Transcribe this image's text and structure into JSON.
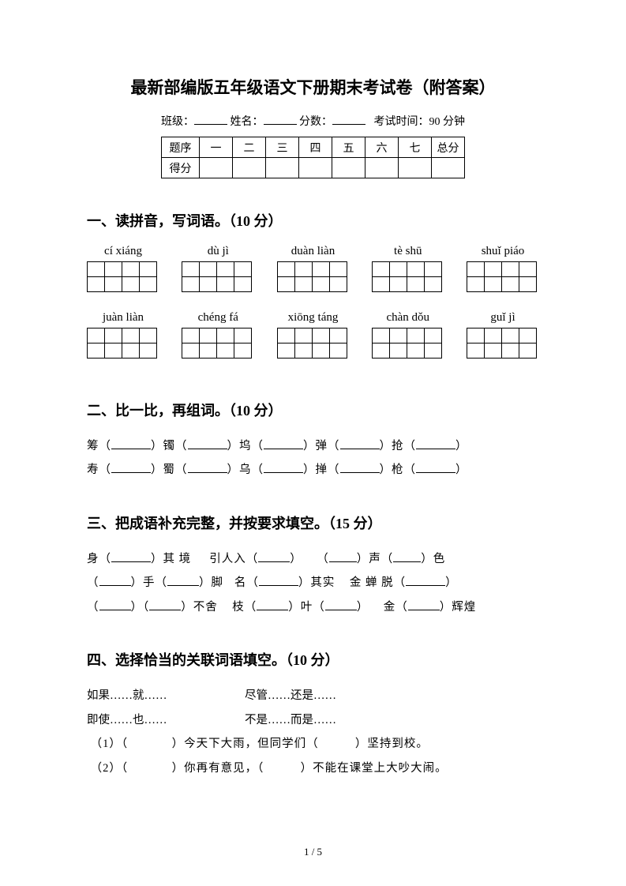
{
  "title": "最新部编版五年级语文下册期末考试卷（附答案）",
  "meta": {
    "class_label": "班级：",
    "name_label": "姓名：",
    "score_label": "分数：",
    "time_label": "考试时间：90 分钟"
  },
  "score_table": {
    "row1_label": "题序",
    "cols": [
      "一",
      "二",
      "三",
      "四",
      "五",
      "六",
      "七",
      "总分"
    ],
    "row2_label": "得分"
  },
  "q1": {
    "head": "一、读拼音，写词语。（10 分）",
    "row1": [
      "cí xiáng",
      "dù jì",
      "duàn liàn",
      "tè shū",
      "shuǐ piáo"
    ],
    "row2": [
      "juàn liàn",
      "chéng fá",
      "xiōng táng",
      "chàn dǒu",
      "guǐ jì"
    ]
  },
  "q2": {
    "head": "二、比一比，再组词。（10 分）",
    "line1": [
      "筹（",
      "）镯（",
      "）坞（",
      "）弹（",
      "）抢（",
      "）"
    ],
    "line2": [
      "寿（",
      "）蜀（",
      "）乌（",
      "）掸（",
      "）枪（",
      "）"
    ]
  },
  "q3": {
    "head": "三、把成语补充完整，并按要求填空。（15 分）",
    "l1a": "身（",
    "l1b": "）其 境",
    "l1c": "引人入（",
    "l1d": "）",
    "l1e": "（",
    "l1f": "）声（",
    "l1g": "）色",
    "l2a": "（",
    "l2b": "）手（",
    "l2c": "）脚",
    "l2d": "名（",
    "l2e": "）其实",
    "l2f": "金 蝉 脱（",
    "l2g": "）",
    "l3a": "（",
    "l3b": "）（",
    "l3c": "）不舍",
    "l3d": "枝（",
    "l3e": "）叶（",
    "l3f": "）",
    "l3g": "金（",
    "l3h": "）辉煌"
  },
  "q4": {
    "head": "四、选择恰当的关联词语填空。（10 分）",
    "opt1": "如果……就……",
    "opt2": "尽管……还是……",
    "opt3": "即使……也……",
    "opt4": "不是……而是……",
    "s1a": "（1）（",
    "s1b": "）今天下大雨，但同学们（",
    "s1c": "）坚持到校。",
    "s2a": "（2）（",
    "s2b": "）你再有意见，（",
    "s2c": "）不能在课堂上大吵大闹。"
  },
  "footer": "1 / 5"
}
